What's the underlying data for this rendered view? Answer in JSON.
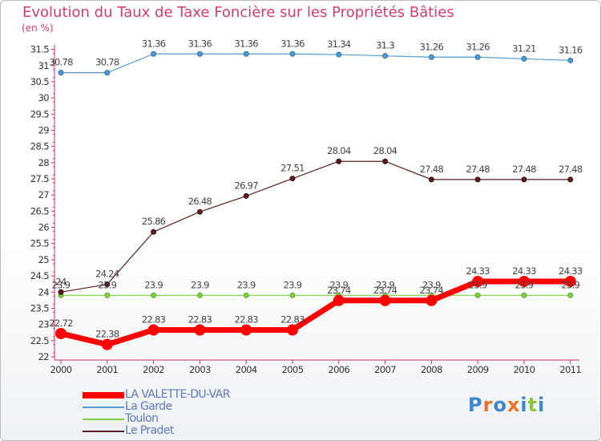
{
  "title": "Evolution du Taux de Taxe Foncière sur les Propriétés Bâties",
  "unit_label": "(en %)",
  "logo_text": "Proxiti",
  "chart_data": {
    "type": "line",
    "title": "Evolution du Taux de Taxe Foncière sur les Propriétés Bâties",
    "ylabel": "(en %)",
    "xlabel": "",
    "x": [
      "2000",
      "2001",
      "2002",
      "2003",
      "2004",
      "2005",
      "2006",
      "2007",
      "2008",
      "2009",
      "2010",
      "2011"
    ],
    "ylim": [
      22,
      31.5
    ],
    "yticks": [
      "22",
      "22.5",
      "23",
      "23.5",
      "24",
      "24.5",
      "25",
      "25.5",
      "26",
      "26.5",
      "27",
      "27.5",
      "28",
      "28.5",
      "29",
      "29.5",
      "30",
      "30.5",
      "31",
      "31.5"
    ],
    "grid": false,
    "legend_position": "bottom-left",
    "series": [
      {
        "name": "LA VALETTE-DU-VAR",
        "color": "#ff0000",
        "values": [
          22.72,
          22.38,
          22.83,
          22.83,
          22.83,
          22.83,
          23.74,
          23.74,
          23.74,
          24.33,
          24.33,
          24.33
        ],
        "labels": [
          "22.72",
          "22.38",
          "22.83",
          "22.83",
          "22.83",
          "22.83",
          "23.74",
          "23.74",
          "23.74",
          "24.33",
          "24.33",
          "24.33"
        ]
      },
      {
        "name": "La Garde",
        "color": "#4f9bd1",
        "values": [
          30.78,
          30.78,
          31.36,
          31.36,
          31.36,
          31.36,
          31.34,
          31.3,
          31.26,
          31.26,
          31.21,
          31.16
        ],
        "labels": [
          "30.78",
          "30.78",
          "31.36",
          "31.36",
          "31.36",
          "31.36",
          "31.34",
          "31.3",
          "31.26",
          "31.26",
          "31.21",
          "31.16"
        ]
      },
      {
        "name": "Toulon",
        "color": "#7fd143",
        "values": [
          23.9,
          23.9,
          23.9,
          23.9,
          23.9,
          23.9,
          23.9,
          23.9,
          23.9,
          23.9,
          23.9,
          23.9
        ],
        "labels": [
          "23.9",
          "23.9",
          "23.9",
          "23.9",
          "23.9",
          "23.9",
          "23.9",
          "23.9",
          "23.9",
          "23.9",
          "23.9",
          "23.9"
        ]
      },
      {
        "name": "Le Pradet",
        "color": "#5a1e1e",
        "values": [
          24.0,
          24.24,
          25.86,
          26.48,
          26.97,
          27.51,
          28.04,
          28.04,
          27.48,
          27.48,
          27.48,
          27.48
        ],
        "labels": [
          "24",
          "24.24",
          "25.86",
          "26.48",
          "26.97",
          "27.51",
          "28.04",
          "28.04",
          "27.48",
          "27.48",
          "27.48",
          "27.48"
        ]
      }
    ]
  }
}
